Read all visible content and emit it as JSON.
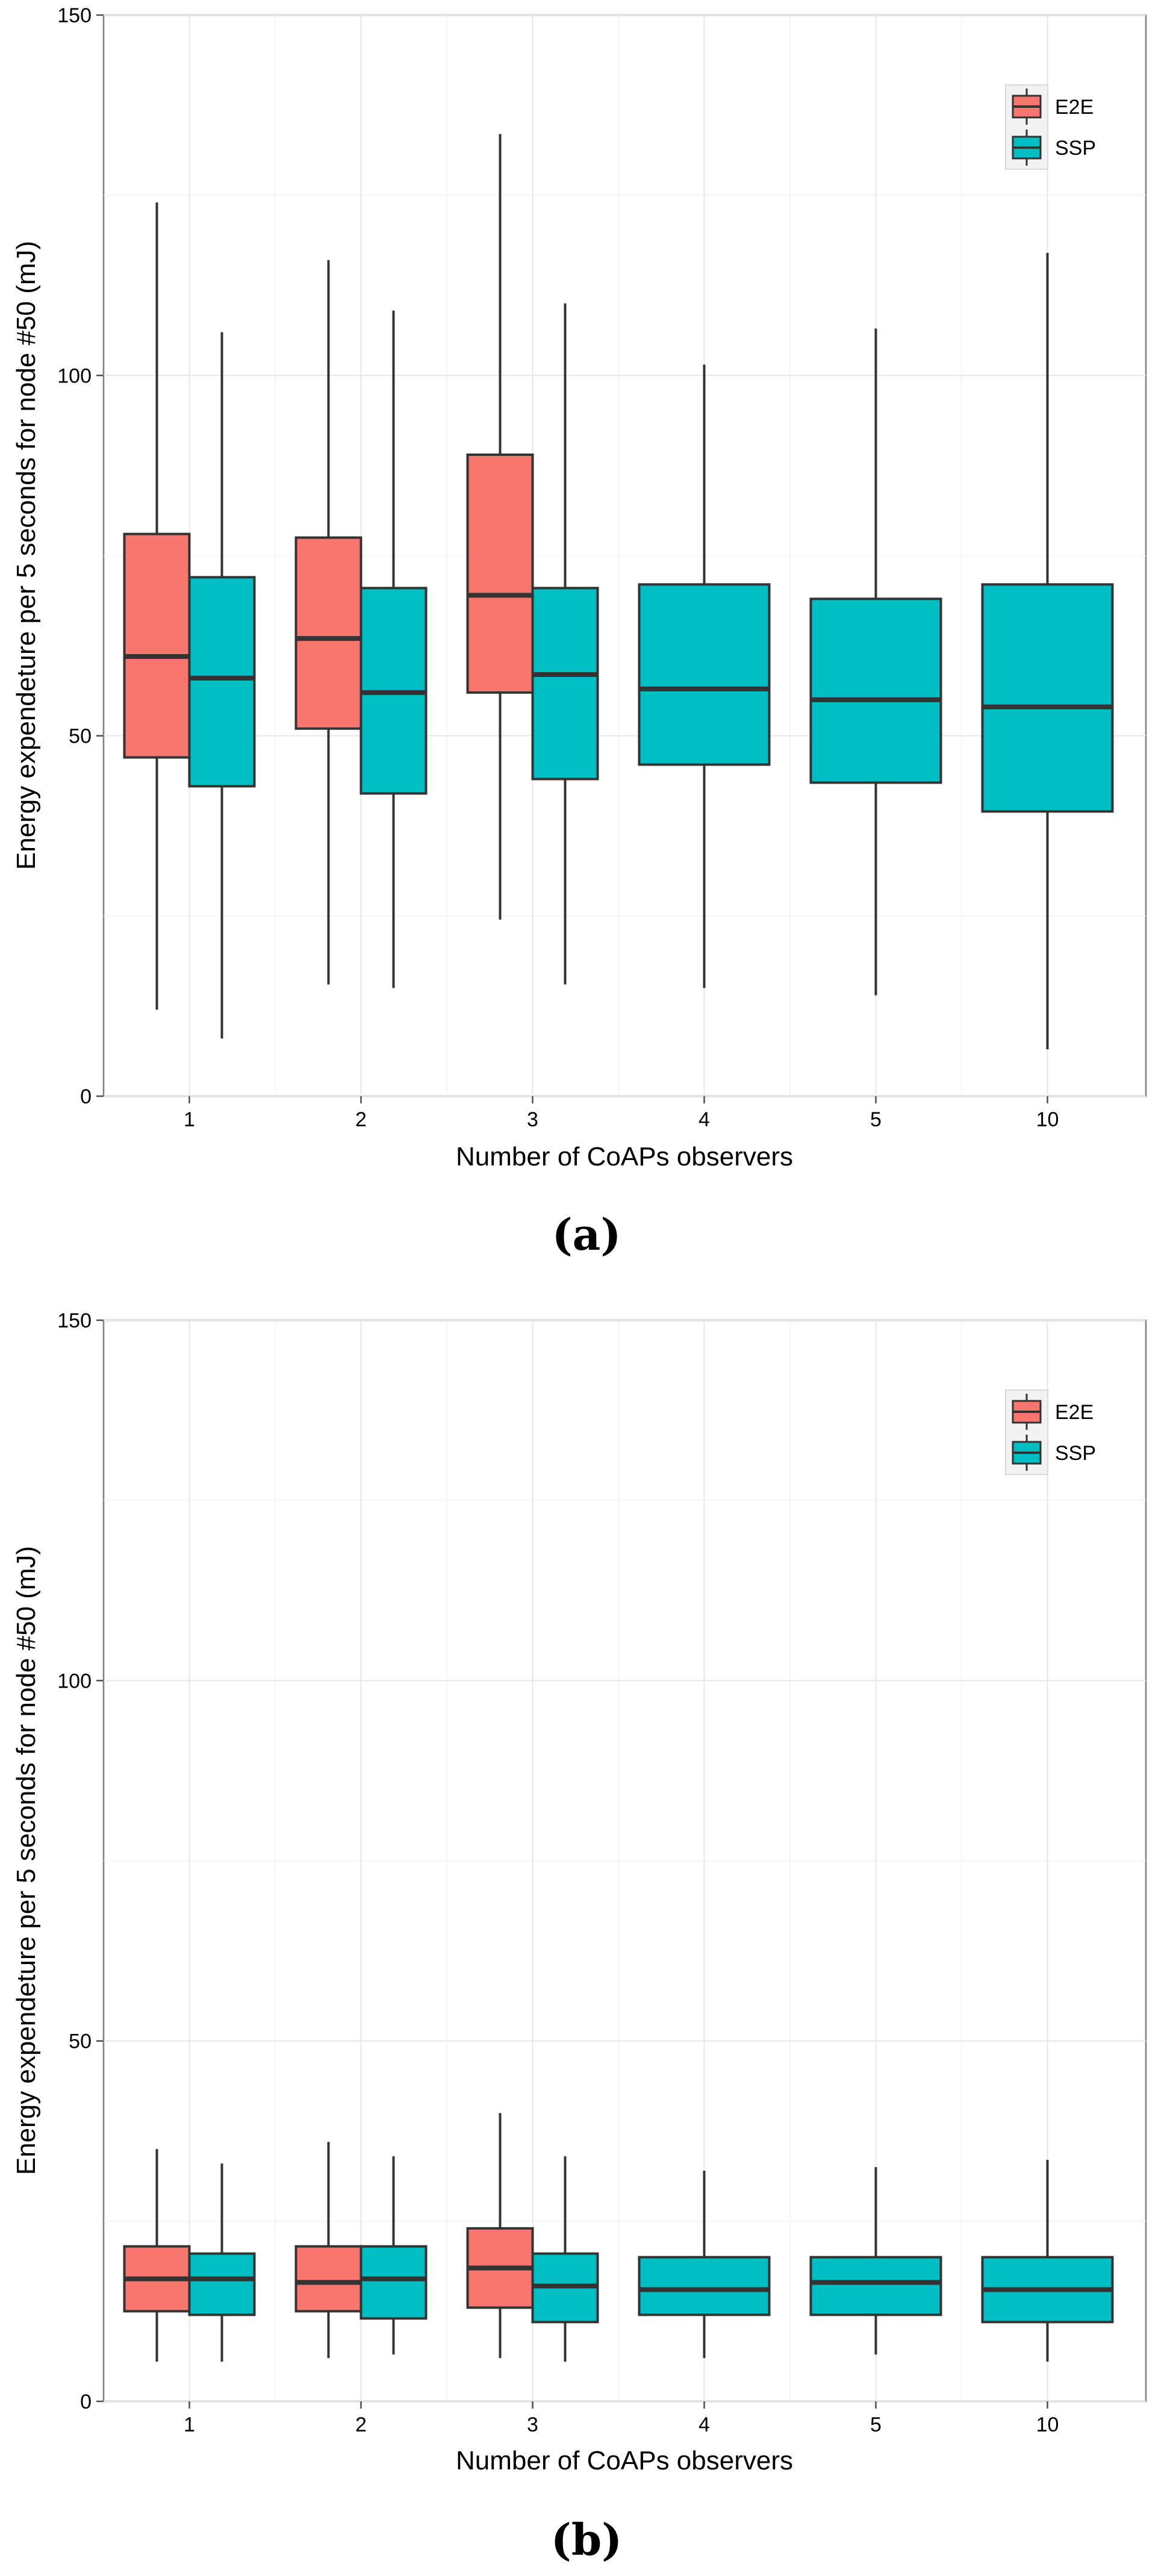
{
  "chart_data": [
    {
      "type": "box",
      "panel_label": "(a)",
      "xlabel": "Number of CoAPs observers",
      "ylabel": "Energy expendeture per 5 seconds for node #50 (mJ)",
      "ylim": [
        0,
        150
      ],
      "yticks": [
        "0",
        "50",
        "100",
        "150"
      ],
      "categories": [
        "1",
        "2",
        "3",
        "4",
        "5",
        "10"
      ],
      "legend": {
        "position": "top-right",
        "entries": [
          {
            "name": "E2E",
            "color": "#F8766D"
          },
          {
            "name": "SSP",
            "color": "#00BFC4"
          }
        ]
      },
      "series": [
        {
          "name": "E2E",
          "color": "#F8766D",
          "boxes": [
            {
              "category": "1",
              "min": 12,
              "q1": 47,
              "median": 61,
              "q3": 78,
              "max": 124
            },
            {
              "category": "2",
              "min": 15.5,
              "q1": 51,
              "median": 63.5,
              "q3": 77.5,
              "max": 116
            },
            {
              "category": "3",
              "min": 24.5,
              "q1": 56,
              "median": 69.5,
              "q3": 89,
              "max": 133.5
            }
          ]
        },
        {
          "name": "SSP",
          "color": "#00BFC4",
          "boxes": [
            {
              "category": "1",
              "min": 8,
              "q1": 43,
              "median": 58,
              "q3": 72,
              "max": 106
            },
            {
              "category": "2",
              "min": 15,
              "q1": 42,
              "median": 56,
              "q3": 70.5,
              "max": 109
            },
            {
              "category": "3",
              "min": 15.5,
              "q1": 44,
              "median": 58.5,
              "q3": 70.5,
              "max": 110
            },
            {
              "category": "4",
              "min": 15,
              "q1": 46,
              "median": 56.5,
              "q3": 71,
              "max": 101.5
            },
            {
              "category": "5",
              "min": 14,
              "q1": 43.5,
              "median": 55,
              "q3": 69,
              "max": 106.5
            },
            {
              "category": "10",
              "min": 6.5,
              "q1": 39.5,
              "median": 54,
              "q3": 71,
              "max": 117
            }
          ]
        }
      ]
    },
    {
      "type": "box",
      "panel_label": "(b)",
      "xlabel": "Number of CoAPs observers",
      "ylabel": "Energy expendeture per 5 seconds for node #50 (mJ)",
      "ylim": [
        0,
        150
      ],
      "yticks": [
        "0",
        "50",
        "100",
        "150"
      ],
      "categories": [
        "1",
        "2",
        "3",
        "4",
        "5",
        "10"
      ],
      "legend": {
        "position": "top-right",
        "entries": [
          {
            "name": "E2E",
            "color": "#F8766D"
          },
          {
            "name": "SSP",
            "color": "#00BFC4"
          }
        ]
      },
      "series": [
        {
          "name": "E2E",
          "color": "#F8766D",
          "boxes": [
            {
              "category": "1",
              "min": 5.5,
              "q1": 12.5,
              "median": 17,
              "q3": 21.5,
              "max": 35
            },
            {
              "category": "2",
              "min": 6,
              "q1": 12.5,
              "median": 16.5,
              "q3": 21.5,
              "max": 36
            },
            {
              "category": "3",
              "min": 6,
              "q1": 13,
              "median": 18.5,
              "q3": 24,
              "max": 40
            }
          ]
        },
        {
          "name": "SSP",
          "color": "#00BFC4",
          "boxes": [
            {
              "category": "1",
              "min": 5.5,
              "q1": 12,
              "median": 17,
              "q3": 20.5,
              "max": 33
            },
            {
              "category": "2",
              "min": 6.5,
              "q1": 11.5,
              "median": 17,
              "q3": 21.5,
              "max": 34
            },
            {
              "category": "3",
              "min": 5.5,
              "q1": 11,
              "median": 16,
              "q3": 20.5,
              "max": 34
            },
            {
              "category": "4",
              "min": 6,
              "q1": 12,
              "median": 15.5,
              "q3": 20,
              "max": 32
            },
            {
              "category": "5",
              "min": 6.5,
              "q1": 12,
              "median": 16.5,
              "q3": 20,
              "max": 32.5
            },
            {
              "category": "10",
              "min": 5.5,
              "q1": 11,
              "median": 15.5,
              "q3": 20,
              "max": 33.5
            }
          ]
        }
      ]
    }
  ]
}
